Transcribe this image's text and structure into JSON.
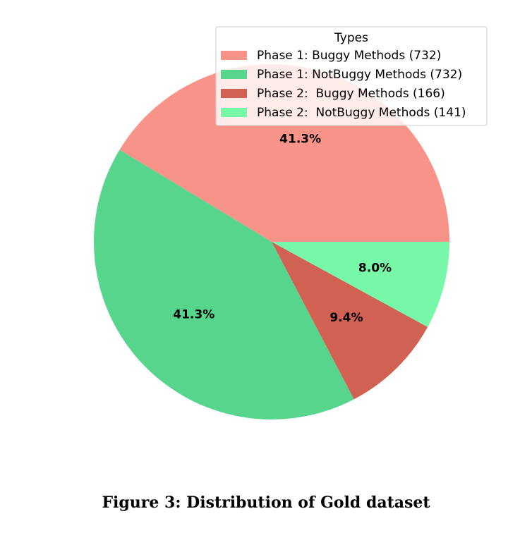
{
  "caption": "Figure 3: Distribution of Gold dataset",
  "chart_data": {
    "type": "pie",
    "legend_title": "Types",
    "legend_position": "top-right",
    "start_angle_deg": 0,
    "direction": "counterclockwise",
    "slices": [
      {
        "label": "Phase 1: Buggy Methods (732)",
        "value": 732,
        "pct_label": "41.3%",
        "color": "#f8938a"
      },
      {
        "label": "Phase 1: NotBuggy Methods (732)",
        "value": 732,
        "pct_label": "41.3%",
        "color": "#57d58d"
      },
      {
        "label": "Phase 2:  Buggy Methods (166)",
        "value": 166,
        "pct_label": "9.4%",
        "color": "#d16153"
      },
      {
        "label": "Phase 2:  NotBuggy Methods (141)",
        "value": 141,
        "pct_label": "8.0%",
        "color": "#77f8a8"
      }
    ]
  }
}
